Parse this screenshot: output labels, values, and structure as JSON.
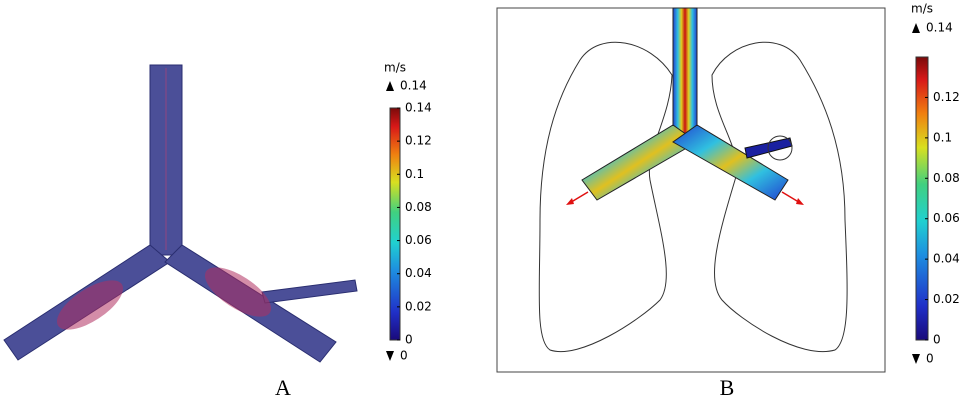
{
  "panels": [
    {
      "label": "A",
      "colorbar": {
        "unit": "m/s",
        "max": 0.14,
        "min": 0,
        "ticks": [
          0,
          0.02,
          0.04,
          0.06,
          0.08,
          0.1,
          0.12,
          0.14
        ]
      }
    },
    {
      "label": "B",
      "colorbar": {
        "unit": "m/s",
        "max": 0.14,
        "min": 0,
        "ticks": [
          0,
          0.02,
          0.04,
          0.06,
          0.08,
          0.1,
          0.12
        ]
      }
    }
  ]
}
